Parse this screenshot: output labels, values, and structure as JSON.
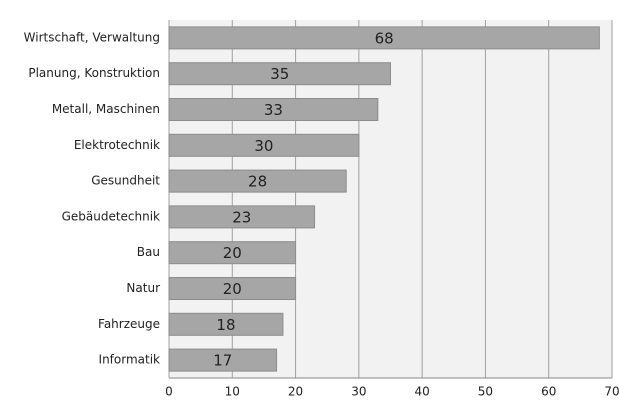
{
  "chart_data": {
    "type": "barh",
    "categories": [
      "Wirtschaft, Verwaltung",
      "Planung, Konstruktion",
      "Metall, Maschinen",
      "Elektrotechnik",
      "Gesundheit",
      "Gebäudetechnik",
      "Bau",
      "Natur",
      "Fahrzeuge",
      "Informatik"
    ],
    "values": [
      68,
      35,
      33,
      30,
      28,
      23,
      20,
      20,
      18,
      17
    ],
    "color": "#a6a6a6",
    "xlim": [
      0,
      70
    ],
    "xticks": [
      0,
      10,
      20,
      30,
      40,
      50,
      60,
      70
    ],
    "grid": true
  }
}
